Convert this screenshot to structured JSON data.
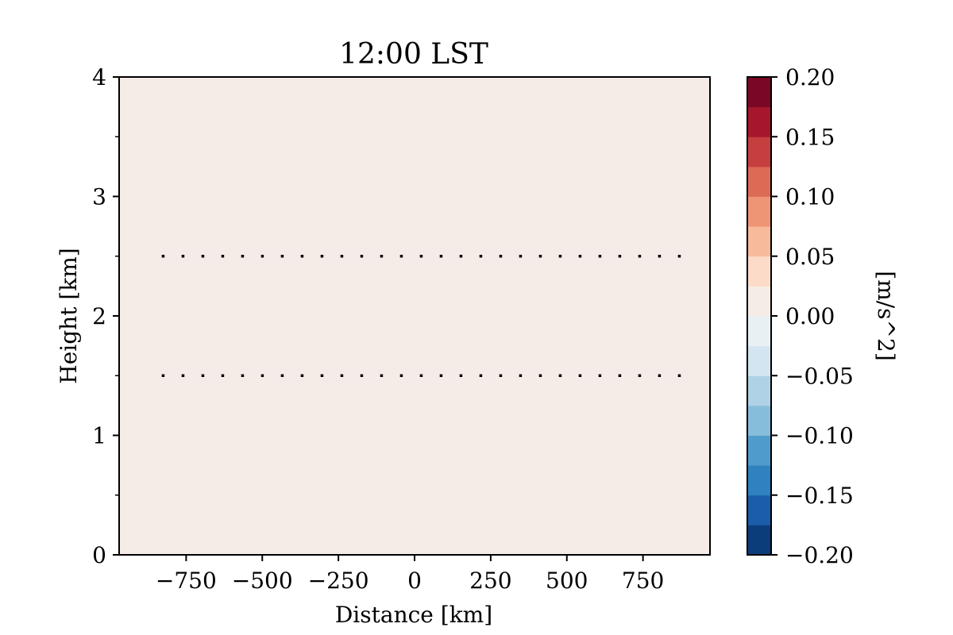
{
  "chart_data": {
    "type": "heatmap",
    "title": "12:00 LST",
    "xlabel": "Distance [km]",
    "ylabel": "Height [km]",
    "xlim": [
      -970,
      970
    ],
    "ylim": [
      0,
      4
    ],
    "x_ticks": [
      -750,
      -500,
      -250,
      0,
      250,
      500,
      750
    ],
    "x_tick_labels": [
      "−750",
      "−500",
      "−250",
      "0",
      "250",
      "500",
      "750"
    ],
    "y_ticks": [
      0,
      1,
      2,
      3,
      4
    ],
    "y_tick_labels": [
      "0",
      "1",
      "2",
      "3",
      "4"
    ],
    "y_minor_ticks": [
      0.5,
      1.5,
      2.5,
      3.5
    ],
    "field_value": 0.005,
    "field_color": "#f6ece7",
    "dotted_lines": [
      {
        "y": 2.5,
        "x_from": -830,
        "x_to": 930
      },
      {
        "y": 1.5,
        "x_from": -830,
        "x_to": 930
      }
    ],
    "colorbar": {
      "label": "[m/s^2]",
      "min": -0.2,
      "max": 0.2,
      "ticks": [
        0.2,
        0.15,
        0.1,
        0.05,
        0.0,
        -0.05,
        -0.1,
        -0.15,
        -0.2
      ],
      "tick_labels": [
        "0.20",
        "0.15",
        "0.10",
        "0.05",
        "0.00",
        "−0.05",
        "−0.10",
        "−0.15",
        "−0.20"
      ],
      "level_colors": [
        "#0b3d7a",
        "#1b5da8",
        "#2f82bf",
        "#4f9bcb",
        "#86bddb",
        "#afd2e6",
        "#d3e5f1",
        "#e9f0f4",
        "#f6ece7",
        "#fcdcc9",
        "#f7bb9c",
        "#ee9576",
        "#dc6b56",
        "#c63f3f",
        "#a6172d",
        "#7a0824"
      ]
    }
  }
}
